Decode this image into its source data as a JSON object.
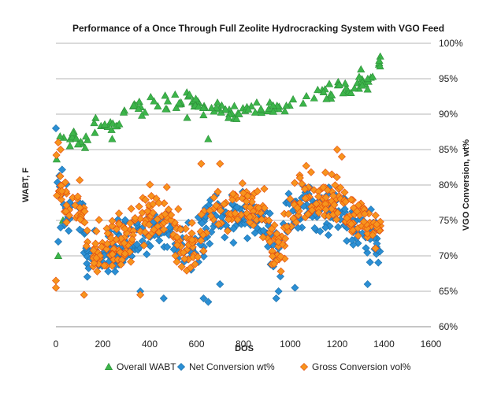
{
  "chart_data": {
    "type": "scatter",
    "title": "Performance of a Once Through Full Zeolite Hydrocracking System with VGO Feed",
    "xlabel": "DOS",
    "ylabel_left": "WABT, F",
    "ylabel_right": "VGO Conversion, wt%",
    "xlim": [
      0,
      1600
    ],
    "x_ticks": [
      "0",
      "200",
      "400",
      "600",
      "800",
      "1000",
      "1200",
      "1400",
      "1600"
    ],
    "ylim_right": [
      60,
      100
    ],
    "y_ticks_right": [
      "60%",
      "65%",
      "70%",
      "75%",
      "80%",
      "85%",
      "90%",
      "95%",
      "100%"
    ],
    "grid": "horizontal",
    "legend_position": "bottom",
    "series": [
      {
        "name": "Overall WABT",
        "marker": "triangle",
        "color": "#3cb54a",
        "trend": [
          [
            0,
            84
          ],
          [
            20,
            87
          ],
          [
            40,
            85
          ],
          [
            60,
            86
          ],
          [
            80,
            87
          ],
          [
            100,
            86
          ],
          [
            120,
            85
          ],
          [
            140,
            87
          ],
          [
            160,
            88
          ],
          [
            200,
            88
          ],
          [
            240,
            88
          ],
          [
            280,
            89
          ],
          [
            300,
            91
          ],
          [
            340,
            91
          ],
          [
            380,
            91
          ],
          [
            420,
            92
          ],
          [
            460,
            92
          ],
          [
            500,
            92
          ],
          [
            540,
            92
          ],
          [
            580,
            92
          ],
          [
            620,
            91
          ],
          [
            660,
            91
          ],
          [
            700,
            91
          ],
          [
            740,
            90
          ],
          [
            780,
            90
          ],
          [
            820,
            91
          ],
          [
            860,
            91
          ],
          [
            900,
            91
          ],
          [
            940,
            91
          ],
          [
            980,
            91
          ],
          [
            1020,
            92
          ],
          [
            1060,
            92
          ],
          [
            1100,
            93
          ],
          [
            1140,
            93
          ],
          [
            1180,
            93
          ],
          [
            1220,
            94
          ],
          [
            1260,
            94
          ],
          [
            1300,
            95
          ],
          [
            1340,
            95
          ],
          [
            1370,
            97
          ],
          [
            1385,
            97.5
          ]
        ],
        "jitter": 1.0,
        "outliers": [
          [
            10,
            70
          ],
          [
            30,
            75
          ],
          [
            650,
            86.5
          ],
          [
            1330,
            93.5
          ],
          [
            240,
            86.5
          ],
          [
            560,
            89.5
          ]
        ]
      },
      {
        "name": "Net Conversion wt%",
        "marker": "diamond",
        "color": "#2b8fd4",
        "trend": [
          [
            0,
            82
          ],
          [
            20,
            79
          ],
          [
            40,
            76
          ],
          [
            60,
            76
          ],
          [
            80,
            75
          ],
          [
            100,
            76
          ],
          [
            120,
            73
          ],
          [
            140,
            70
          ],
          [
            160,
            69
          ],
          [
            200,
            70
          ],
          [
            240,
            71
          ],
          [
            280,
            71
          ],
          [
            320,
            72
          ],
          [
            360,
            73
          ],
          [
            400,
            74
          ],
          [
            440,
            74
          ],
          [
            480,
            74
          ],
          [
            520,
            72
          ],
          [
            560,
            71
          ],
          [
            600,
            71
          ],
          [
            640,
            74
          ],
          [
            680,
            76
          ],
          [
            720,
            76
          ],
          [
            760,
            75
          ],
          [
            800,
            76
          ],
          [
            840,
            76
          ],
          [
            880,
            76
          ],
          [
            920,
            71
          ],
          [
            960,
            71
          ],
          [
            1000,
            77
          ],
          [
            1040,
            76
          ],
          [
            1080,
            77
          ],
          [
            1120,
            77
          ],
          [
            1160,
            76
          ],
          [
            1200,
            77
          ],
          [
            1240,
            76
          ],
          [
            1280,
            74
          ],
          [
            1320,
            73
          ],
          [
            1360,
            72
          ],
          [
            1385,
            72
          ]
        ],
        "jitter": 3.0,
        "outliers": [
          [
            0,
            88
          ],
          [
            10,
            72
          ],
          [
            20,
            74
          ],
          [
            630,
            64
          ],
          [
            650,
            63.5
          ],
          [
            460,
            64
          ],
          [
            940,
            64
          ],
          [
            950,
            65
          ],
          [
            1020,
            65.5
          ],
          [
            1330,
            66
          ],
          [
            700,
            66
          ],
          [
            360,
            65
          ]
        ]
      },
      {
        "name": "Gross Conversion vol%",
        "marker": "diamond",
        "color": "#f7941d",
        "trend": [
          [
            0,
            82
          ],
          [
            20,
            80
          ],
          [
            40,
            78
          ],
          [
            60,
            77
          ],
          [
            80,
            77
          ],
          [
            100,
            77
          ],
          [
            120,
            74
          ],
          [
            140,
            70
          ],
          [
            160,
            70
          ],
          [
            200,
            71
          ],
          [
            240,
            71
          ],
          [
            280,
            72
          ],
          [
            320,
            73
          ],
          [
            360,
            75
          ],
          [
            400,
            76
          ],
          [
            440,
            76
          ],
          [
            480,
            76
          ],
          [
            520,
            73
          ],
          [
            560,
            72
          ],
          [
            600,
            72
          ],
          [
            640,
            75
          ],
          [
            680,
            77
          ],
          [
            720,
            77
          ],
          [
            760,
            77
          ],
          [
            800,
            77
          ],
          [
            840,
            77
          ],
          [
            880,
            77
          ],
          [
            920,
            72
          ],
          [
            960,
            71
          ],
          [
            1000,
            78
          ],
          [
            1040,
            78
          ],
          [
            1080,
            78
          ],
          [
            1120,
            78
          ],
          [
            1160,
            78
          ],
          [
            1200,
            78
          ],
          [
            1240,
            77
          ],
          [
            1280,
            75
          ],
          [
            1320,
            74
          ],
          [
            1360,
            74
          ],
          [
            1385,
            74
          ]
        ],
        "jitter": 3.0,
        "outliers": [
          [
            0,
            65.5
          ],
          [
            0,
            66.5
          ],
          [
            10,
            86
          ],
          [
            20,
            85
          ],
          [
            120,
            64.5
          ],
          [
            360,
            64.5
          ],
          [
            1200,
            85
          ],
          [
            1220,
            84
          ],
          [
            620,
            83
          ],
          [
            700,
            83
          ]
        ]
      }
    ]
  }
}
